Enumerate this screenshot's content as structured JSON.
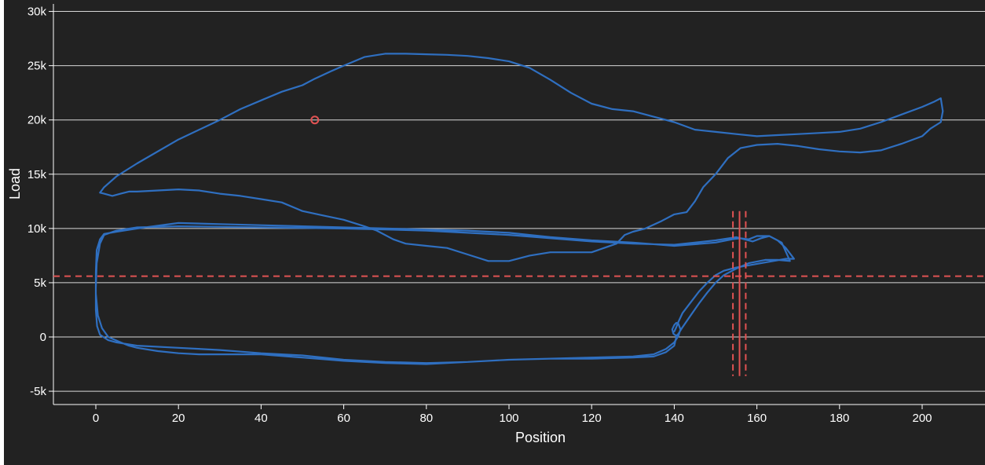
{
  "chart_data": {
    "type": "line",
    "xlabel": "Position",
    "ylabel": "Load",
    "xlim": [
      -10,
      215
    ],
    "ylim": [
      -6000,
      30500
    ],
    "x_ticks": [
      0,
      20,
      40,
      60,
      80,
      100,
      120,
      140,
      160,
      180,
      200
    ],
    "x_tick_labels": [
      "0",
      "20",
      "40",
      "60",
      "80",
      "100",
      "120",
      "140",
      "160",
      "180",
      "200"
    ],
    "y_ticks": [
      -5000,
      0,
      5000,
      10000,
      15000,
      20000,
      25000,
      30000
    ],
    "y_tick_labels": [
      "-5k",
      "0",
      "5k",
      "10k",
      "15k",
      "20k",
      "25k",
      "30k"
    ],
    "grid": "horizontal",
    "series": [
      {
        "color": "#2f6fc0",
        "x": [
          1.0,
          2.0,
          5.0,
          10.0,
          20.0,
          30.0,
          35.0,
          40.0,
          45.0,
          50.0,
          53.0,
          57.0,
          60.0,
          65.0,
          70.0,
          75.0,
          80.0,
          85.0,
          90.0,
          95.0,
          100.0,
          105.0,
          110.0,
          115.0,
          120.0,
          125.0,
          130.0,
          135.0,
          140.0,
          145.0,
          150.0,
          155.0,
          160.0,
          165.0,
          170.0,
          175.0,
          180.0,
          185.0,
          190.0,
          195.0,
          200.0,
          203.0,
          204.5,
          205.0,
          204.5,
          202.0,
          200.0,
          195.0,
          190.0,
          185.0,
          180.0,
          175.0,
          170.0,
          165.0,
          160.0,
          156.0,
          153.0,
          150.0,
          147.0,
          145.0,
          143.0,
          140.0,
          137.0,
          133.0,
          130.0,
          128.0,
          126.0,
          123.0,
          120.0,
          115.0,
          110.0,
          105.0,
          100.0,
          95.0,
          90.0,
          85.0,
          80.0,
          75.0,
          72.0,
          68.0,
          65.0,
          60.0,
          55.0,
          50.0,
          45.0,
          40.0,
          35.0,
          30.0,
          25.0,
          20.0,
          15.0,
          10.0,
          8.0,
          6.0,
          4.0,
          2.0,
          1.0
        ],
        "y": [
          13300,
          13800,
          14800,
          16000,
          18200,
          20000,
          21000,
          21800,
          22600,
          23200,
          23800,
          24500,
          25000,
          25800,
          26100,
          26100,
          26050,
          26000,
          25900,
          25700,
          25400,
          24800,
          23700,
          22500,
          21500,
          21000,
          20800,
          20300,
          19800,
          19100,
          18900,
          18700,
          18500,
          18600,
          18700,
          18800,
          18900,
          19200,
          19800,
          20500,
          21200,
          21700,
          22000,
          20800,
          19800,
          19200,
          18500,
          17800,
          17200,
          17000,
          17100,
          17300,
          17600,
          17800,
          17700,
          17400,
          16500,
          15000,
          13800,
          12500,
          11500,
          11300,
          10700,
          10000,
          9700,
          9400,
          8600,
          8200,
          7800,
          7800,
          7800,
          7500,
          7000,
          7000,
          7600,
          8200,
          8400,
          8600,
          9000,
          9800,
          10200,
          10800,
          11200,
          11600,
          12400,
          12700,
          13000,
          13200,
          13500,
          13600,
          13500,
          13400,
          13400,
          13200,
          13000,
          13200,
          13300
        ]
      },
      {
        "color": "#2f6fc0",
        "x": [
          140.0,
          140.5,
          141.0,
          142.0,
          144.0,
          146.0,
          148.0,
          150.0,
          152.0,
          155.0,
          158.0,
          161.0,
          164.0,
          167.0,
          169.0,
          167.0,
          165.0,
          163.0,
          161.0,
          159.0,
          157.0,
          155.0,
          150.0,
          140.0,
          130.0,
          120.0,
          110.0,
          100.0,
          90.0,
          80.0,
          70.0,
          60.0,
          50.0,
          40.0,
          30.0,
          20.0,
          10.0,
          5.0,
          2.0,
          1.0,
          0.2,
          0.0,
          0.0,
          0.3,
          1.0,
          3.0,
          5.0,
          10.0,
          20.0,
          30.0,
          40.0,
          50.0,
          60.0,
          70.0,
          80.0,
          90.0,
          100.0,
          110.0,
          120.0,
          130.0,
          135.0,
          138.0,
          140.0,
          141.0,
          141.5,
          141.0,
          140.5,
          140.0,
          139.5,
          139.8,
          140.5,
          141.0,
          142.0,
          144.0,
          146.0,
          148.0,
          150.0,
          152.0,
          155.0,
          158.0,
          162.0,
          165.0,
          168.0,
          166.0,
          163.0,
          160.0,
          158.0,
          156.0,
          154.0,
          150.0,
          140.0,
          130.0,
          120.0,
          110.0,
          100.0,
          90.0,
          80.0,
          70.0,
          60.0,
          50.0,
          40.0,
          30.0,
          20.0,
          10.0,
          5.0,
          2.0,
          1.0,
          0.2,
          0.0,
          0.0,
          0.5,
          1.5,
          3.0,
          6.0,
          8.0,
          10.0,
          15.0,
          20.0,
          25.0,
          30.0,
          40.0,
          50.0,
          60.0,
          70.0,
          80.0,
          90.0,
          100.0,
          110.0,
          120.0,
          130.0,
          135.0,
          138.0,
          140.0,
          140.5
        ],
        "y": [
          500,
          900,
          1400,
          2200,
          3200,
          4200,
          5000,
          5700,
          6100,
          6400,
          6600,
          6800,
          7000,
          7200,
          7200,
          8200,
          8900,
          9300,
          9100,
          8800,
          9000,
          9200,
          8900,
          8500,
          8600,
          8800,
          9100,
          9400,
          9600,
          9800,
          9900,
          10000,
          10050,
          10100,
          10150,
          10200,
          10100,
          9800,
          9400,
          8600,
          6800,
          4500,
          2500,
          1000,
          200,
          -300,
          -500,
          -800,
          -1000,
          -1200,
          -1500,
          -1700,
          -2100,
          -2300,
          -2400,
          -2300,
          -2100,
          -2000,
          -1900,
          -1800,
          -1600,
          -1100,
          -500,
          100,
          700,
          1200,
          1300,
          1100,
          700,
          300,
          100,
          300,
          900,
          2000,
          3100,
          4100,
          5000,
          5700,
          6300,
          6800,
          7100,
          7100,
          7000,
          8700,
          9300,
          9300,
          9000,
          9100,
          9000,
          8700,
          8400,
          8700,
          8900,
          9200,
          9600,
          9800,
          9900,
          10000,
          10100,
          10200,
          10300,
          10400,
          10500,
          10000,
          9700,
          9500,
          9000,
          8000,
          6000,
          4000,
          2000,
          800,
          0,
          -500,
          -800,
          -1000,
          -1300,
          -1500,
          -1600,
          -1600,
          -1600,
          -1900,
          -2200,
          -2400,
          -2500,
          -2300,
          -2100,
          -2000,
          -2000,
          -1900,
          -1800,
          -1400,
          -800,
          0
        ]
      }
    ],
    "marker": {
      "x": 53,
      "y": 20000,
      "color": "#e05252"
    },
    "reference_lines": {
      "color": "#e05252",
      "horizontal": {
        "y": 5600,
        "style": "dashed"
      },
      "vertical": [
        {
          "x": 154.2,
          "style": "dashed",
          "y_range": [
            -3600,
            11600
          ]
        },
        {
          "x": 155.8,
          "style": "solid",
          "y_range": [
            -3600,
            11600
          ]
        },
        {
          "x": 157.3,
          "style": "dashed",
          "y_range": [
            -3600,
            11600
          ]
        }
      ]
    }
  }
}
